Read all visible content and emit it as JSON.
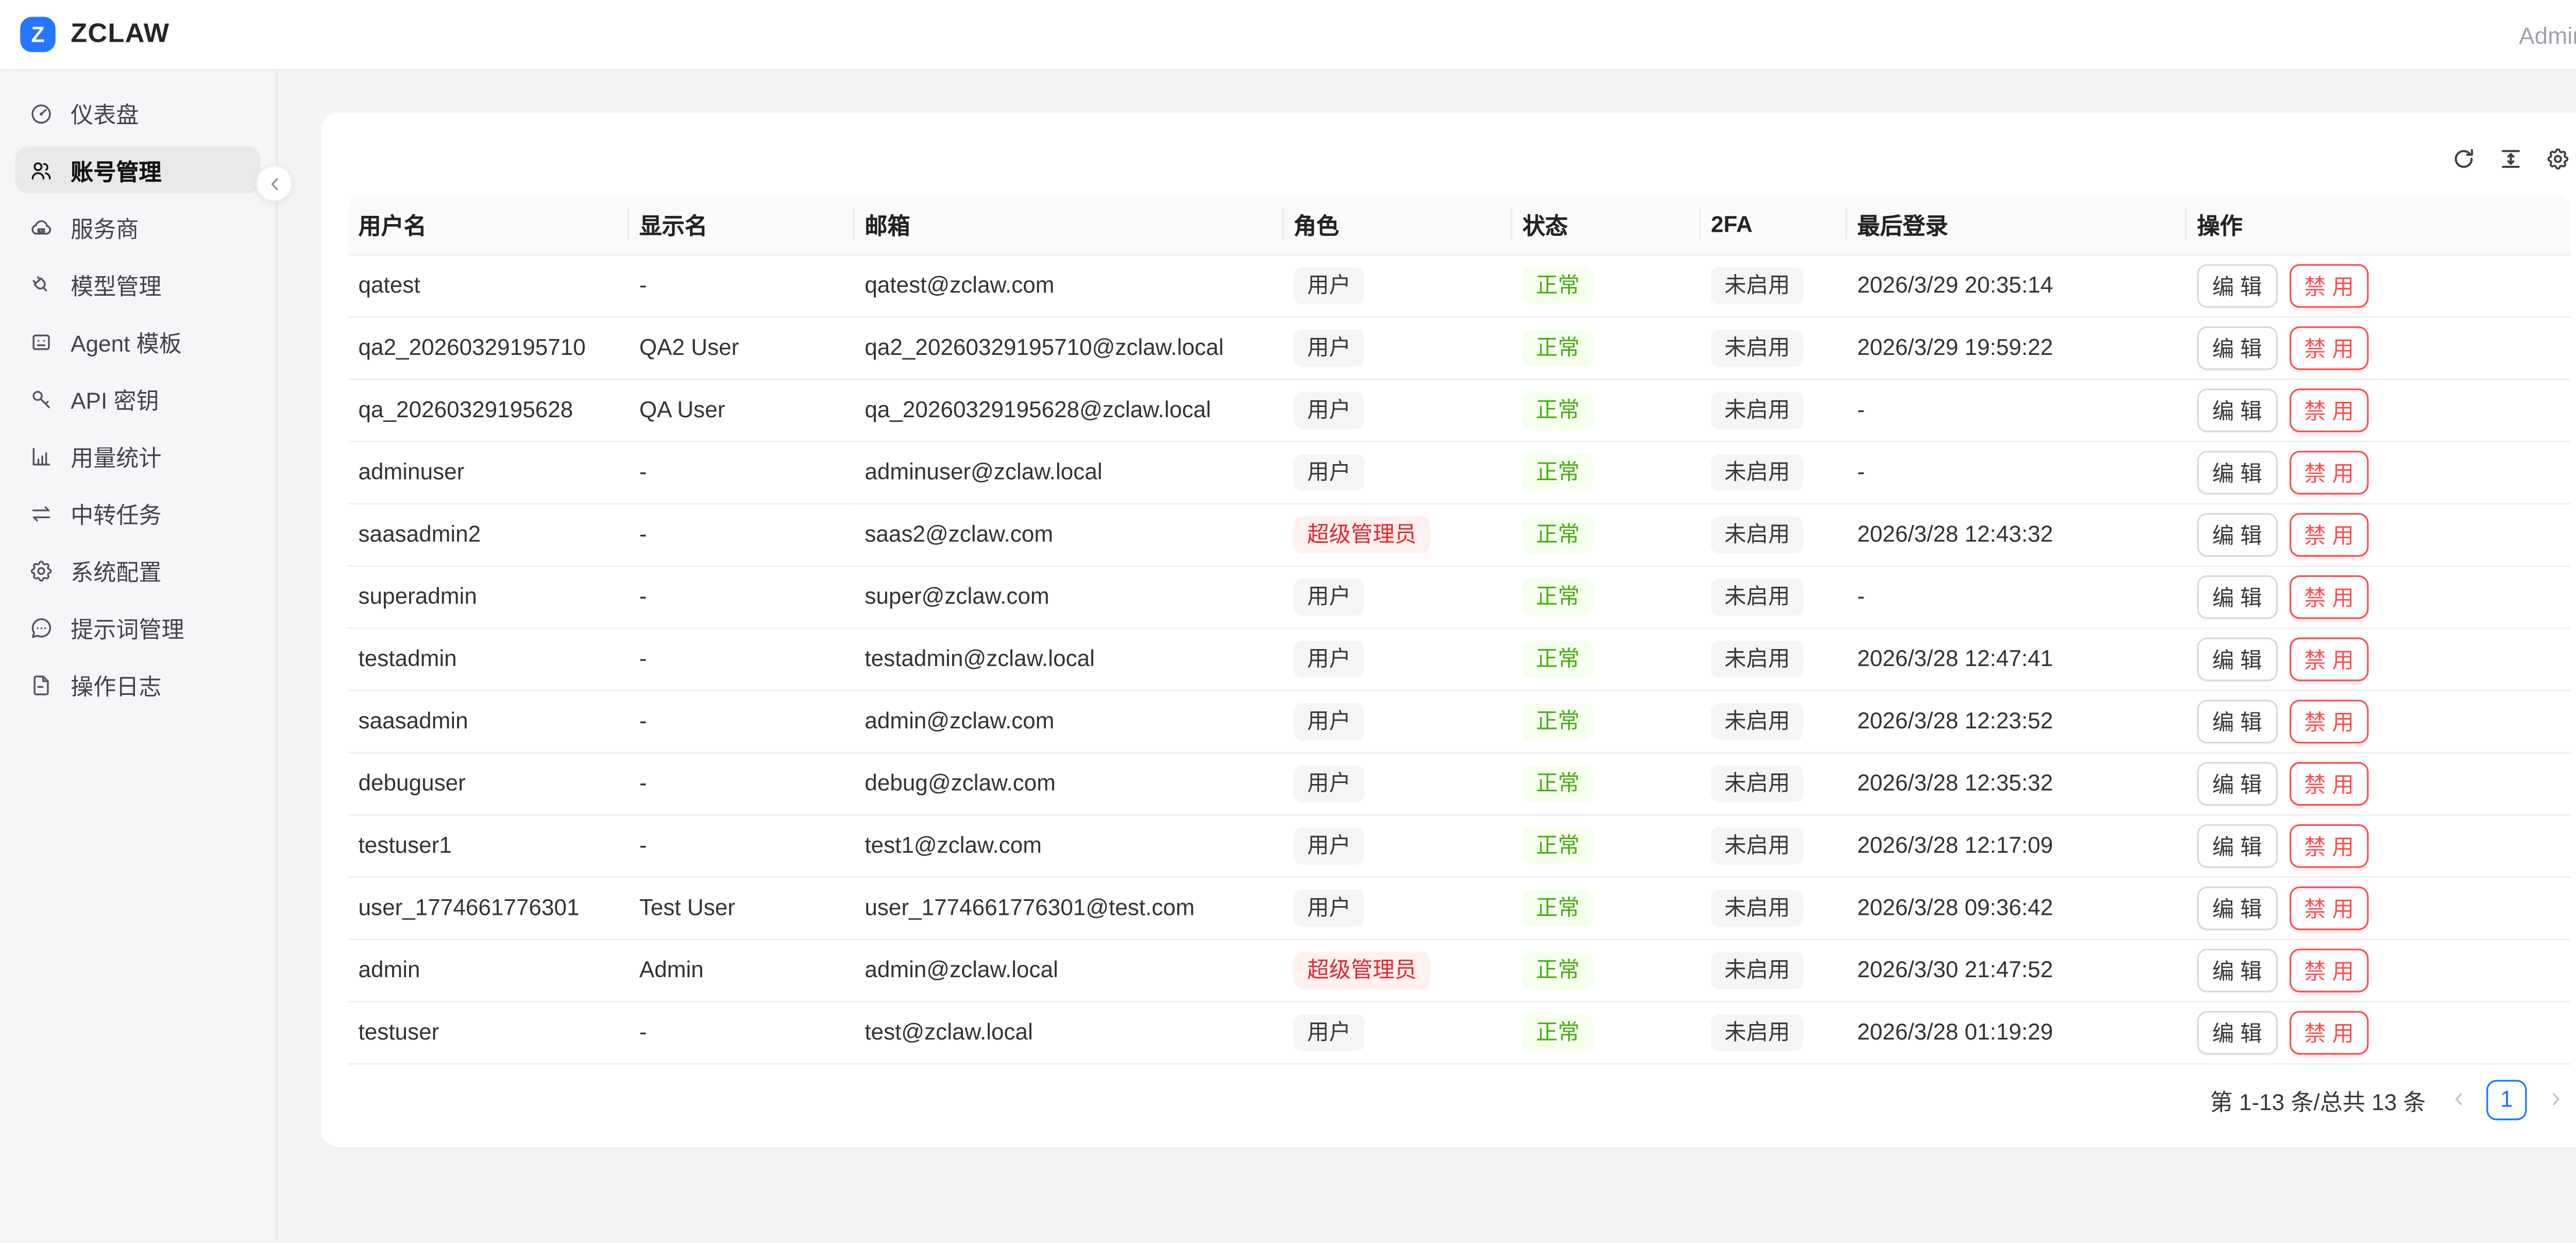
{
  "topbar": {
    "logo_letter": "Z",
    "brand": "ZCLAW",
    "user": "Admin"
  },
  "sidebar": {
    "items": [
      {
        "icon": "gauge-icon",
        "label": "仪表盘",
        "active": false
      },
      {
        "icon": "users-icon",
        "label": "账号管理",
        "active": true
      },
      {
        "icon": "cloud-icon",
        "label": "服务商",
        "active": false
      },
      {
        "icon": "plug-icon",
        "label": "模型管理",
        "active": false
      },
      {
        "icon": "robot-icon",
        "label": "Agent 模板",
        "active": false
      },
      {
        "icon": "key-icon",
        "label": "API 密钥",
        "active": false
      },
      {
        "icon": "bar-chart-icon",
        "label": "用量统计",
        "active": false
      },
      {
        "icon": "swap-icon",
        "label": "中转任务",
        "active": false
      },
      {
        "icon": "gear-icon",
        "label": "系统配置",
        "active": false
      },
      {
        "icon": "message-dots-icon",
        "label": "提示词管理",
        "active": false
      },
      {
        "icon": "file-text-icon",
        "label": "操作日志",
        "active": false
      }
    ]
  },
  "toolbar": {
    "icons": [
      "refresh-icon",
      "density-icon",
      "gear-icon"
    ]
  },
  "table": {
    "columns": [
      "用户名",
      "显示名",
      "邮箱",
      "角色",
      "状态",
      "2FA",
      "最后登录",
      "操作"
    ],
    "rows": [
      {
        "username": "qatest",
        "display_name": "-",
        "email": "qatest@zclaw.com",
        "role": "用户",
        "role_type": "default",
        "status": "正常",
        "twofa": "未启用",
        "last_login": "2026/3/29 20:35:14"
      },
      {
        "username": "qa2_20260329195710",
        "display_name": "QA2 User",
        "email": "qa2_20260329195710@zclaw.local",
        "role": "用户",
        "role_type": "default",
        "status": "正常",
        "twofa": "未启用",
        "last_login": "2026/3/29 19:59:22"
      },
      {
        "username": "qa_20260329195628",
        "display_name": "QA User",
        "email": "qa_20260329195628@zclaw.local",
        "role": "用户",
        "role_type": "default",
        "status": "正常",
        "twofa": "未启用",
        "last_login": "-"
      },
      {
        "username": "adminuser",
        "display_name": "-",
        "email": "adminuser@zclaw.local",
        "role": "用户",
        "role_type": "default",
        "status": "正常",
        "twofa": "未启用",
        "last_login": "-"
      },
      {
        "username": "saasadmin2",
        "display_name": "-",
        "email": "saas2@zclaw.com",
        "role": "超级管理员",
        "role_type": "danger",
        "status": "正常",
        "twofa": "未启用",
        "last_login": "2026/3/28 12:43:32"
      },
      {
        "username": "superadmin",
        "display_name": "-",
        "email": "super@zclaw.com",
        "role": "用户",
        "role_type": "default",
        "status": "正常",
        "twofa": "未启用",
        "last_login": "-"
      },
      {
        "username": "testadmin",
        "display_name": "-",
        "email": "testadmin@zclaw.local",
        "role": "用户",
        "role_type": "default",
        "status": "正常",
        "twofa": "未启用",
        "last_login": "2026/3/28 12:47:41"
      },
      {
        "username": "saasadmin",
        "display_name": "-",
        "email": "admin@zclaw.com",
        "role": "用户",
        "role_type": "default",
        "status": "正常",
        "twofa": "未启用",
        "last_login": "2026/3/28 12:23:52"
      },
      {
        "username": "debuguser",
        "display_name": "-",
        "email": "debug@zclaw.com",
        "role": "用户",
        "role_type": "default",
        "status": "正常",
        "twofa": "未启用",
        "last_login": "2026/3/28 12:35:32"
      },
      {
        "username": "testuser1",
        "display_name": "-",
        "email": "test1@zclaw.com",
        "role": "用户",
        "role_type": "default",
        "status": "正常",
        "twofa": "未启用",
        "last_login": "2026/3/28 12:17:09"
      },
      {
        "username": "user_1774661776301",
        "display_name": "Test User",
        "email": "user_1774661776301@test.com",
        "role": "用户",
        "role_type": "default",
        "status": "正常",
        "twofa": "未启用",
        "last_login": "2026/3/28 09:36:42"
      },
      {
        "username": "admin",
        "display_name": "Admin",
        "email": "admin@zclaw.local",
        "role": "超级管理员",
        "role_type": "danger",
        "status": "正常",
        "twofa": "未启用",
        "last_login": "2026/3/30 21:47:52"
      },
      {
        "username": "testuser",
        "display_name": "-",
        "email": "test@zclaw.local",
        "role": "用户",
        "role_type": "default",
        "status": "正常",
        "twofa": "未启用",
        "last_login": "2026/3/28 01:19:29"
      }
    ]
  },
  "actions": {
    "edit_label": "编 辑",
    "disable_label": "禁 用"
  },
  "pagination": {
    "total_text": "第 1-13 条/总共 13 条",
    "current_page": "1",
    "prev_icon": "chevron-left-icon",
    "next_icon": "chevron-right-icon"
  },
  "colors": {
    "accent_blue": "#1677ff",
    "logo_blue": "#2577ff",
    "success_text": "#47ad15",
    "success_bg": "#f6ffed",
    "danger_text": "#e0282f",
    "danger_bg": "#fff1f0",
    "disable_red": "#ff4d4f",
    "page_bg": "#f3f4f5"
  }
}
